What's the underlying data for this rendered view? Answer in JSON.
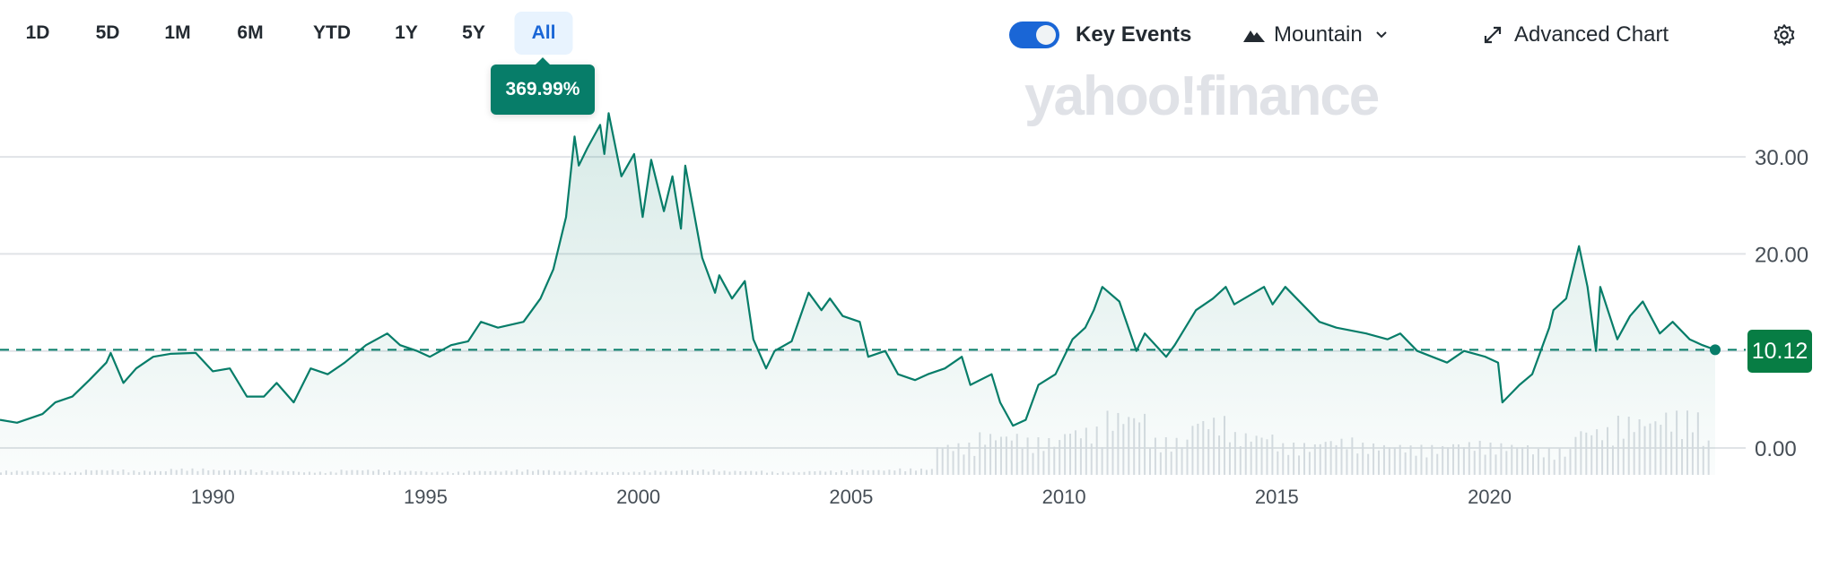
{
  "toolbar": {
    "ranges": [
      "1D",
      "5D",
      "1M",
      "6M",
      "YTD",
      "1Y",
      "5Y",
      "All"
    ],
    "active_range": "All",
    "change_tooltip": "369.99%",
    "key_events_label": "Key Events",
    "key_events_on": true,
    "chart_type_label": "Mountain",
    "advanced_chart_label": "Advanced Chart"
  },
  "watermark": "yahoo!finance",
  "colors": {
    "line": "#077d69",
    "accent": "#1a66d6",
    "price_box": "#077d44"
  },
  "chart_data": {
    "type": "area",
    "xlim": [
      1985.0,
      2025.3
    ],
    "ylim": [
      0,
      35
    ],
    "grid": true,
    "y_ticks": [
      0,
      10,
      20,
      30
    ],
    "y_tick_labels": [
      "0.00",
      "10.00",
      "20.00",
      "30.00"
    ],
    "x_ticks": [
      1990,
      1995,
      2000,
      2005,
      2010,
      2015,
      2020
    ],
    "x_tick_labels": [
      "1990",
      "1995",
      "2000",
      "2005",
      "2010",
      "2015",
      "2020"
    ],
    "current_price": 10.12,
    "current_price_label": "10.12",
    "x": [
      1985.0,
      1985.4,
      1986.0,
      1986.3,
      1986.7,
      1987.1,
      1987.5,
      1987.6,
      1987.9,
      1988.2,
      1988.6,
      1989.0,
      1989.6,
      1990.0,
      1990.4,
      1990.8,
      1991.2,
      1991.5,
      1991.9,
      1992.3,
      1992.7,
      1993.1,
      1993.6,
      1994.1,
      1994.4,
      1994.8,
      1995.1,
      1995.6,
      1996.0,
      1996.3,
      1996.7,
      1997.3,
      1997.7,
      1998.0,
      1998.3,
      1998.5,
      1998.6,
      1998.8,
      1999.1,
      1999.2,
      1999.3,
      1999.6,
      1999.9,
      2000.1,
      2000.3,
      2000.6,
      2000.8,
      2001.0,
      2001.1,
      2001.3,
      2001.5,
      2001.8,
      2001.9,
      2002.2,
      2002.5,
      2002.7,
      2003.0,
      2003.2,
      2003.6,
      2004.0,
      2004.3,
      2004.5,
      2004.8,
      2005.2,
      2005.4,
      2005.8,
      2006.1,
      2006.5,
      2006.8,
      2007.2,
      2007.6,
      2007.8,
      2008.3,
      2008.5,
      2008.8,
      2009.1,
      2009.4,
      2009.8,
      2010.2,
      2010.5,
      2010.7,
      2010.9,
      2011.3,
      2011.7,
      2011.9,
      2012.4,
      2012.6,
      2013.1,
      2013.5,
      2013.8,
      2014.0,
      2014.7,
      2014.9,
      2015.2,
      2015.6,
      2016.0,
      2016.4,
      2017.1,
      2017.6,
      2017.9,
      2018.3,
      2019.0,
      2019.4,
      2019.9,
      2020.2,
      2020.3,
      2020.7,
      2021.0,
      2021.4,
      2021.5,
      2021.8,
      2022.1,
      2022.3,
      2022.5,
      2022.6,
      2023.0,
      2023.3,
      2023.6,
      2024.0,
      2024.3,
      2024.7,
      2025.0,
      2025.3
    ],
    "y": [
      2.9,
      2.6,
      3.5,
      4.7,
      5.3,
      7.0,
      8.8,
      9.8,
      6.7,
      8.2,
      9.4,
      9.7,
      9.8,
      7.9,
      8.2,
      5.3,
      5.3,
      6.7,
      4.7,
      8.2,
      7.6,
      8.8,
      10.6,
      11.8,
      10.6,
      10.0,
      9.4,
      10.6,
      11.0,
      13.0,
      12.4,
      13.0,
      15.4,
      18.4,
      23.8,
      32.1,
      29.1,
      30.9,
      33.3,
      30.3,
      34.5,
      28.0,
      30.3,
      23.8,
      29.7,
      24.4,
      28.0,
      22.6,
      29.1,
      24.4,
      19.6,
      16.0,
      17.8,
      15.4,
      17.2,
      11.2,
      8.2,
      10.0,
      11.0,
      16.0,
      14.2,
      15.4,
      13.6,
      13.0,
      9.4,
      10.0,
      7.6,
      7.0,
      7.6,
      8.2,
      9.4,
      6.5,
      7.6,
      4.7,
      2.3,
      2.9,
      6.5,
      7.6,
      11.2,
      12.4,
      14.2,
      16.6,
      15.1,
      10.0,
      11.8,
      9.4,
      10.6,
      14.2,
      15.4,
      16.6,
      14.8,
      16.6,
      14.8,
      16.6,
      14.8,
      13.0,
      12.4,
      11.8,
      11.2,
      11.8,
      10.0,
      8.8,
      10.0,
      9.4,
      8.8,
      4.7,
      6.5,
      7.6,
      12.4,
      14.2,
      15.4,
      20.8,
      16.6,
      10.0,
      16.6,
      11.2,
      13.6,
      15.1,
      11.8,
      13.0,
      11.2,
      10.6,
      10.12
    ],
    "volume_relative": [
      4,
      3,
      5,
      4,
      6,
      5,
      4,
      3,
      5,
      4,
      3,
      4,
      5,
      4,
      3,
      4,
      5,
      4,
      3,
      4,
      5,
      6,
      30,
      40,
      35,
      45,
      60,
      35,
      55,
      40,
      30,
      35,
      30,
      28,
      32,
      30,
      25,
      45,
      55,
      60,
      35
    ]
  }
}
